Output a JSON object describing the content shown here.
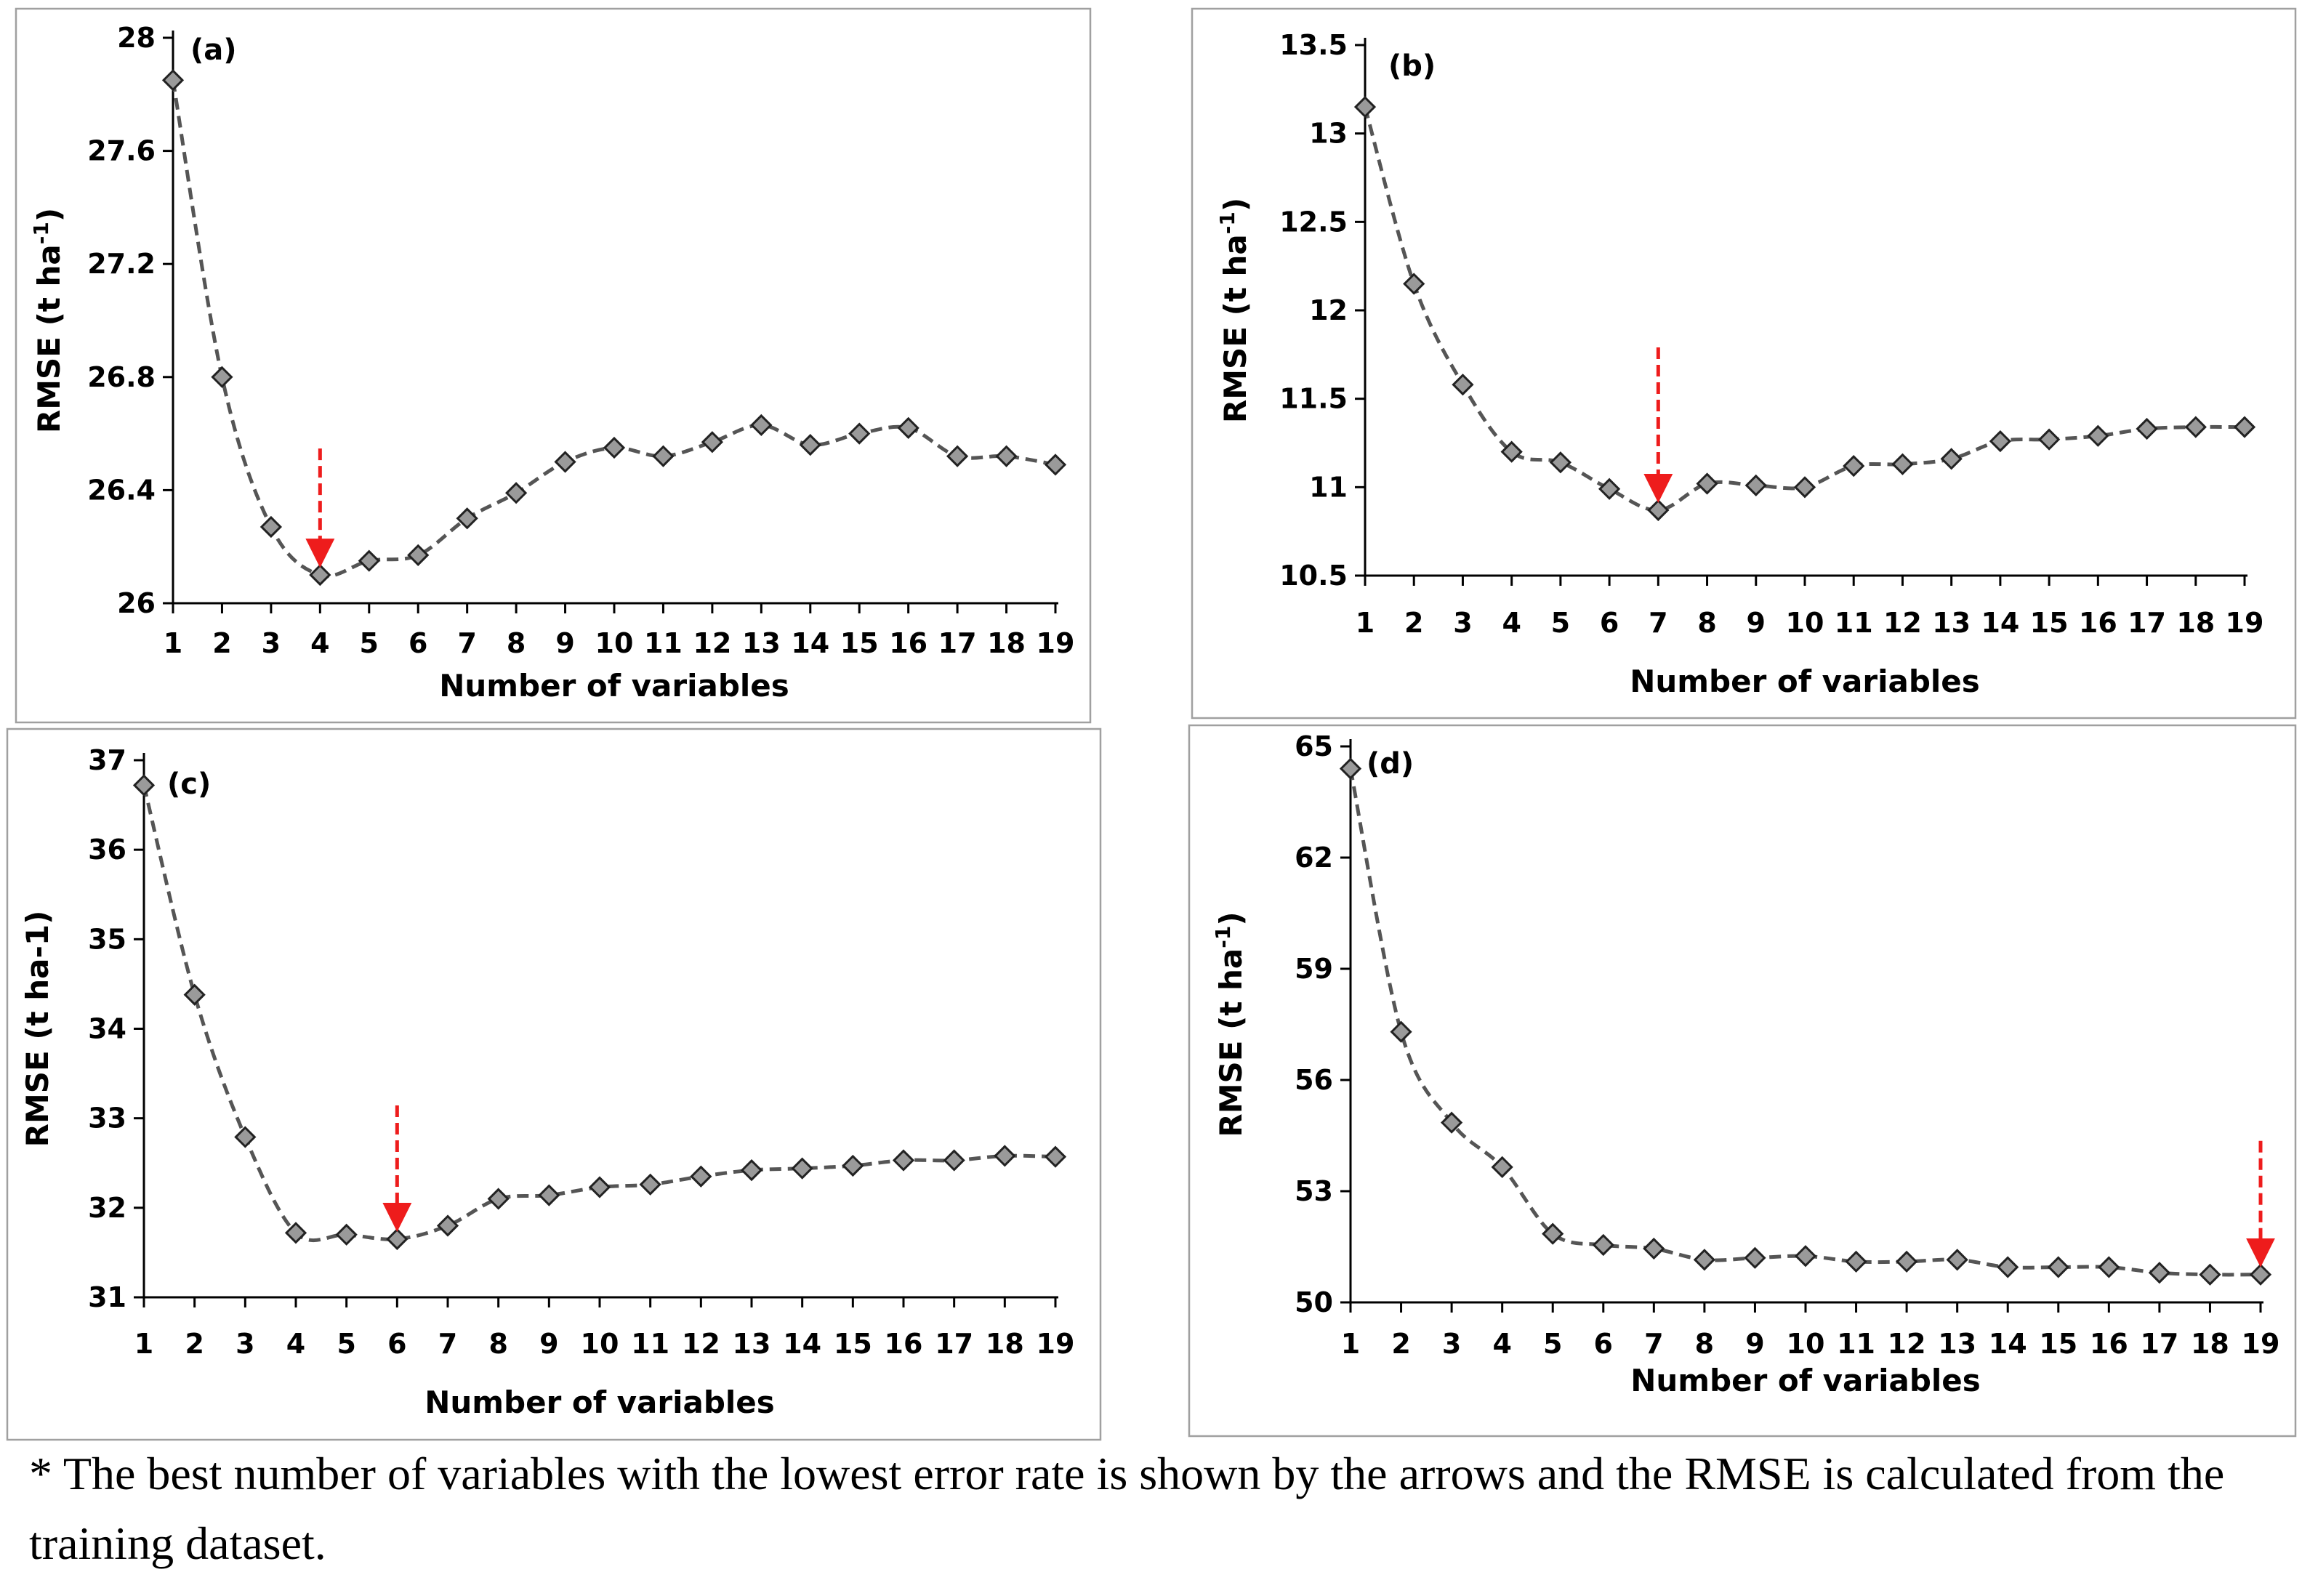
{
  "chart_data": [
    {
      "type": "line",
      "panel_label": "(a)",
      "xlabel": "Number of variables",
      "ylabel": "RMSE (t ha",
      "ylabel_sup": "-1",
      "ylabel_suffix": ")",
      "x": [
        1,
        2,
        3,
        4,
        5,
        6,
        7,
        8,
        9,
        10,
        11,
        12,
        13,
        14,
        15,
        16,
        17,
        18,
        19
      ],
      "values": [
        27.85,
        26.8,
        26.27,
        26.1,
        26.15,
        26.17,
        26.3,
        26.39,
        26.5,
        26.55,
        26.52,
        26.57,
        26.63,
        26.56,
        26.6,
        26.62,
        26.52,
        26.52,
        26.49
      ],
      "ylim": [
        26,
        28
      ],
      "yticks": [
        26,
        26.4,
        26.8,
        27.2,
        27.6,
        28
      ],
      "ytick_labels": [
        "26",
        "26.4",
        "26.8",
        "27.2",
        "27.6",
        "28"
      ],
      "best_x": 4,
      "arrow_color": "#ee1c1c"
    },
    {
      "type": "line",
      "panel_label": "(b)",
      "xlabel": "Number of variables",
      "ylabel": "RMSE (t ha",
      "ylabel_sup": "-1",
      "ylabel_suffix": ")",
      "x": [
        1,
        2,
        3,
        4,
        5,
        6,
        7,
        8,
        9,
        10,
        11,
        12,
        13,
        14,
        15,
        16,
        17,
        18,
        19
      ],
      "values": [
        13.15,
        12.15,
        11.58,
        11.2,
        11.14,
        10.99,
        10.87,
        11.02,
        11.01,
        11.0,
        11.12,
        11.13,
        11.16,
        11.26,
        11.27,
        11.29,
        11.33,
        11.34,
        11.34
      ],
      "ylim": [
        10.5,
        13.5
      ],
      "yticks": [
        10.5,
        11,
        11.5,
        12,
        12.5,
        13,
        13.5
      ],
      "ytick_labels": [
        "10.5",
        "11",
        "11.5",
        "12",
        "12.5",
        "13",
        "13.5"
      ],
      "best_x": 7,
      "arrow_color": "#ee1c1c"
    },
    {
      "type": "line",
      "panel_label": "(c)",
      "xlabel": "Number of variables",
      "ylabel": "RMSE (t ha-1)",
      "ylabel_sup": "",
      "ylabel_suffix": "",
      "x": [
        1,
        2,
        3,
        4,
        5,
        6,
        7,
        8,
        9,
        10,
        11,
        12,
        13,
        14,
        15,
        16,
        17,
        18,
        19
      ],
      "values": [
        36.72,
        34.38,
        32.79,
        31.72,
        31.7,
        31.65,
        31.8,
        32.1,
        32.14,
        32.23,
        32.26,
        32.35,
        32.42,
        32.44,
        32.47,
        32.53,
        32.53,
        32.58,
        32.57
      ],
      "ylim": [
        31,
        37
      ],
      "yticks": [
        31,
        32,
        33,
        34,
        35,
        36,
        37
      ],
      "ytick_labels": [
        "31",
        "32",
        "33",
        "34",
        "35",
        "36",
        "37"
      ],
      "best_x": 6,
      "arrow_color": "#ee1c1c"
    },
    {
      "type": "line",
      "panel_label": "(d)",
      "xlabel": "Number of variables",
      "ylabel": "RMSE (t ha",
      "ylabel_sup": "-1",
      "ylabel_suffix": ")",
      "x": [
        1,
        2,
        3,
        4,
        5,
        6,
        7,
        8,
        9,
        10,
        11,
        12,
        13,
        14,
        15,
        16,
        17,
        18,
        19
      ],
      "values": [
        64.4,
        57.3,
        54.85,
        53.65,
        51.85,
        51.55,
        51.45,
        51.15,
        51.2,
        51.25,
        51.1,
        51.1,
        51.15,
        50.95,
        50.95,
        50.95,
        50.8,
        50.75,
        50.75
      ],
      "ylim": [
        50,
        65
      ],
      "yticks": [
        50,
        53,
        56,
        59,
        62,
        65
      ],
      "ytick_labels": [
        "50",
        "53",
        "56",
        "59",
        "62",
        "65"
      ],
      "best_x": 19,
      "arrow_color": "#ee1c1c"
    }
  ],
  "caption": "* The best number of variables with the lowest error rate is shown by the arrows and the RMSE is calculated from the training dataset."
}
